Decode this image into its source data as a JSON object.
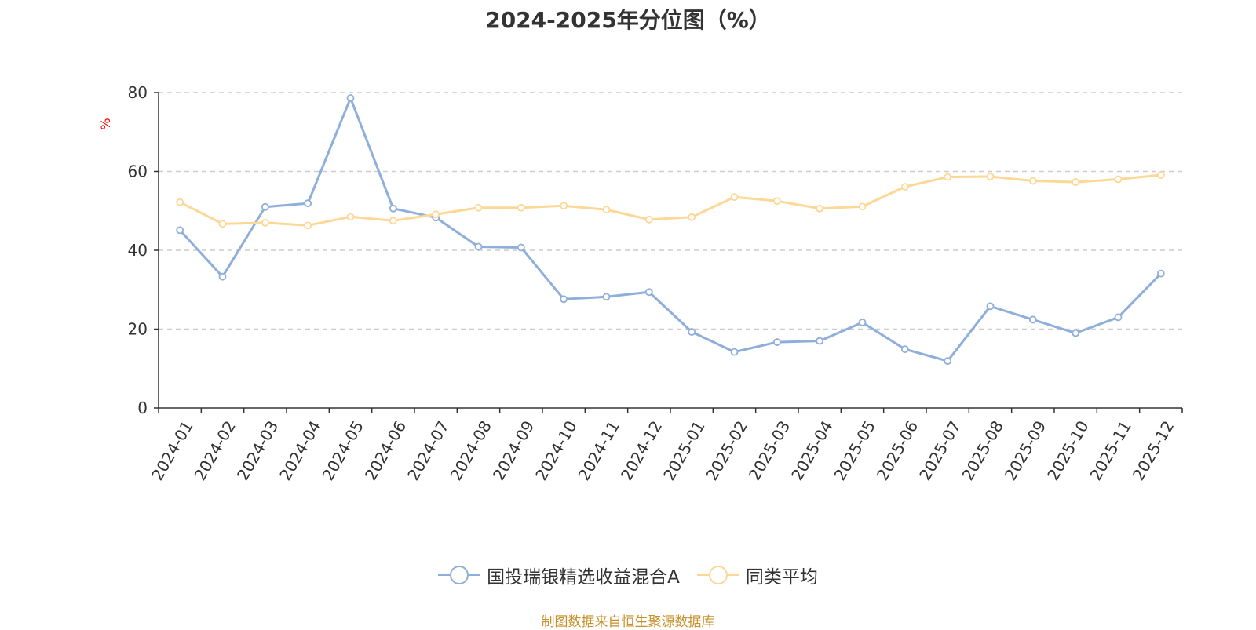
{
  "chart_data": {
    "type": "line",
    "title": "2024-2025年分位图（%）",
    "ylabel": "%",
    "ylim": [
      0,
      80
    ],
    "yticks": [
      0,
      20,
      40,
      60,
      80
    ],
    "grid": true,
    "legend_position": "bottom",
    "categories": [
      "2024-01",
      "2024-02",
      "2024-03",
      "2024-04",
      "2024-05",
      "2024-06",
      "2024-07",
      "2024-08",
      "2024-09",
      "2024-10",
      "2024-11",
      "2024-12",
      "2025-01",
      "2025-02",
      "2025-03",
      "2025-04",
      "2025-05",
      "2025-06",
      "2025-07",
      "2025-08",
      "2025-09",
      "2025-10",
      "2025-11",
      "2025-12"
    ],
    "series": [
      {
        "name": "国投瑞银精选收益混合A",
        "color": "#8eaedb",
        "values": [
          45.1,
          33.3,
          51.0,
          51.9,
          78.6,
          50.6,
          48.3,
          40.9,
          40.7,
          27.6,
          28.2,
          29.4,
          19.3,
          14.2,
          16.7,
          17.0,
          21.7,
          14.9,
          11.9,
          25.8,
          22.4,
          19.0,
          23.0,
          34.1
        ]
      },
      {
        "name": "同类平均",
        "color": "#fdd795",
        "values": [
          52.2,
          46.7,
          47.0,
          46.3,
          48.5,
          47.5,
          49.1,
          50.8,
          50.8,
          51.3,
          50.3,
          47.8,
          48.4,
          53.5,
          52.5,
          50.6,
          51.1,
          56.1,
          58.6,
          58.7,
          57.6,
          57.3,
          58.0,
          59.1
        ]
      }
    ],
    "source": "制图数据来自恒生聚源数据库"
  }
}
